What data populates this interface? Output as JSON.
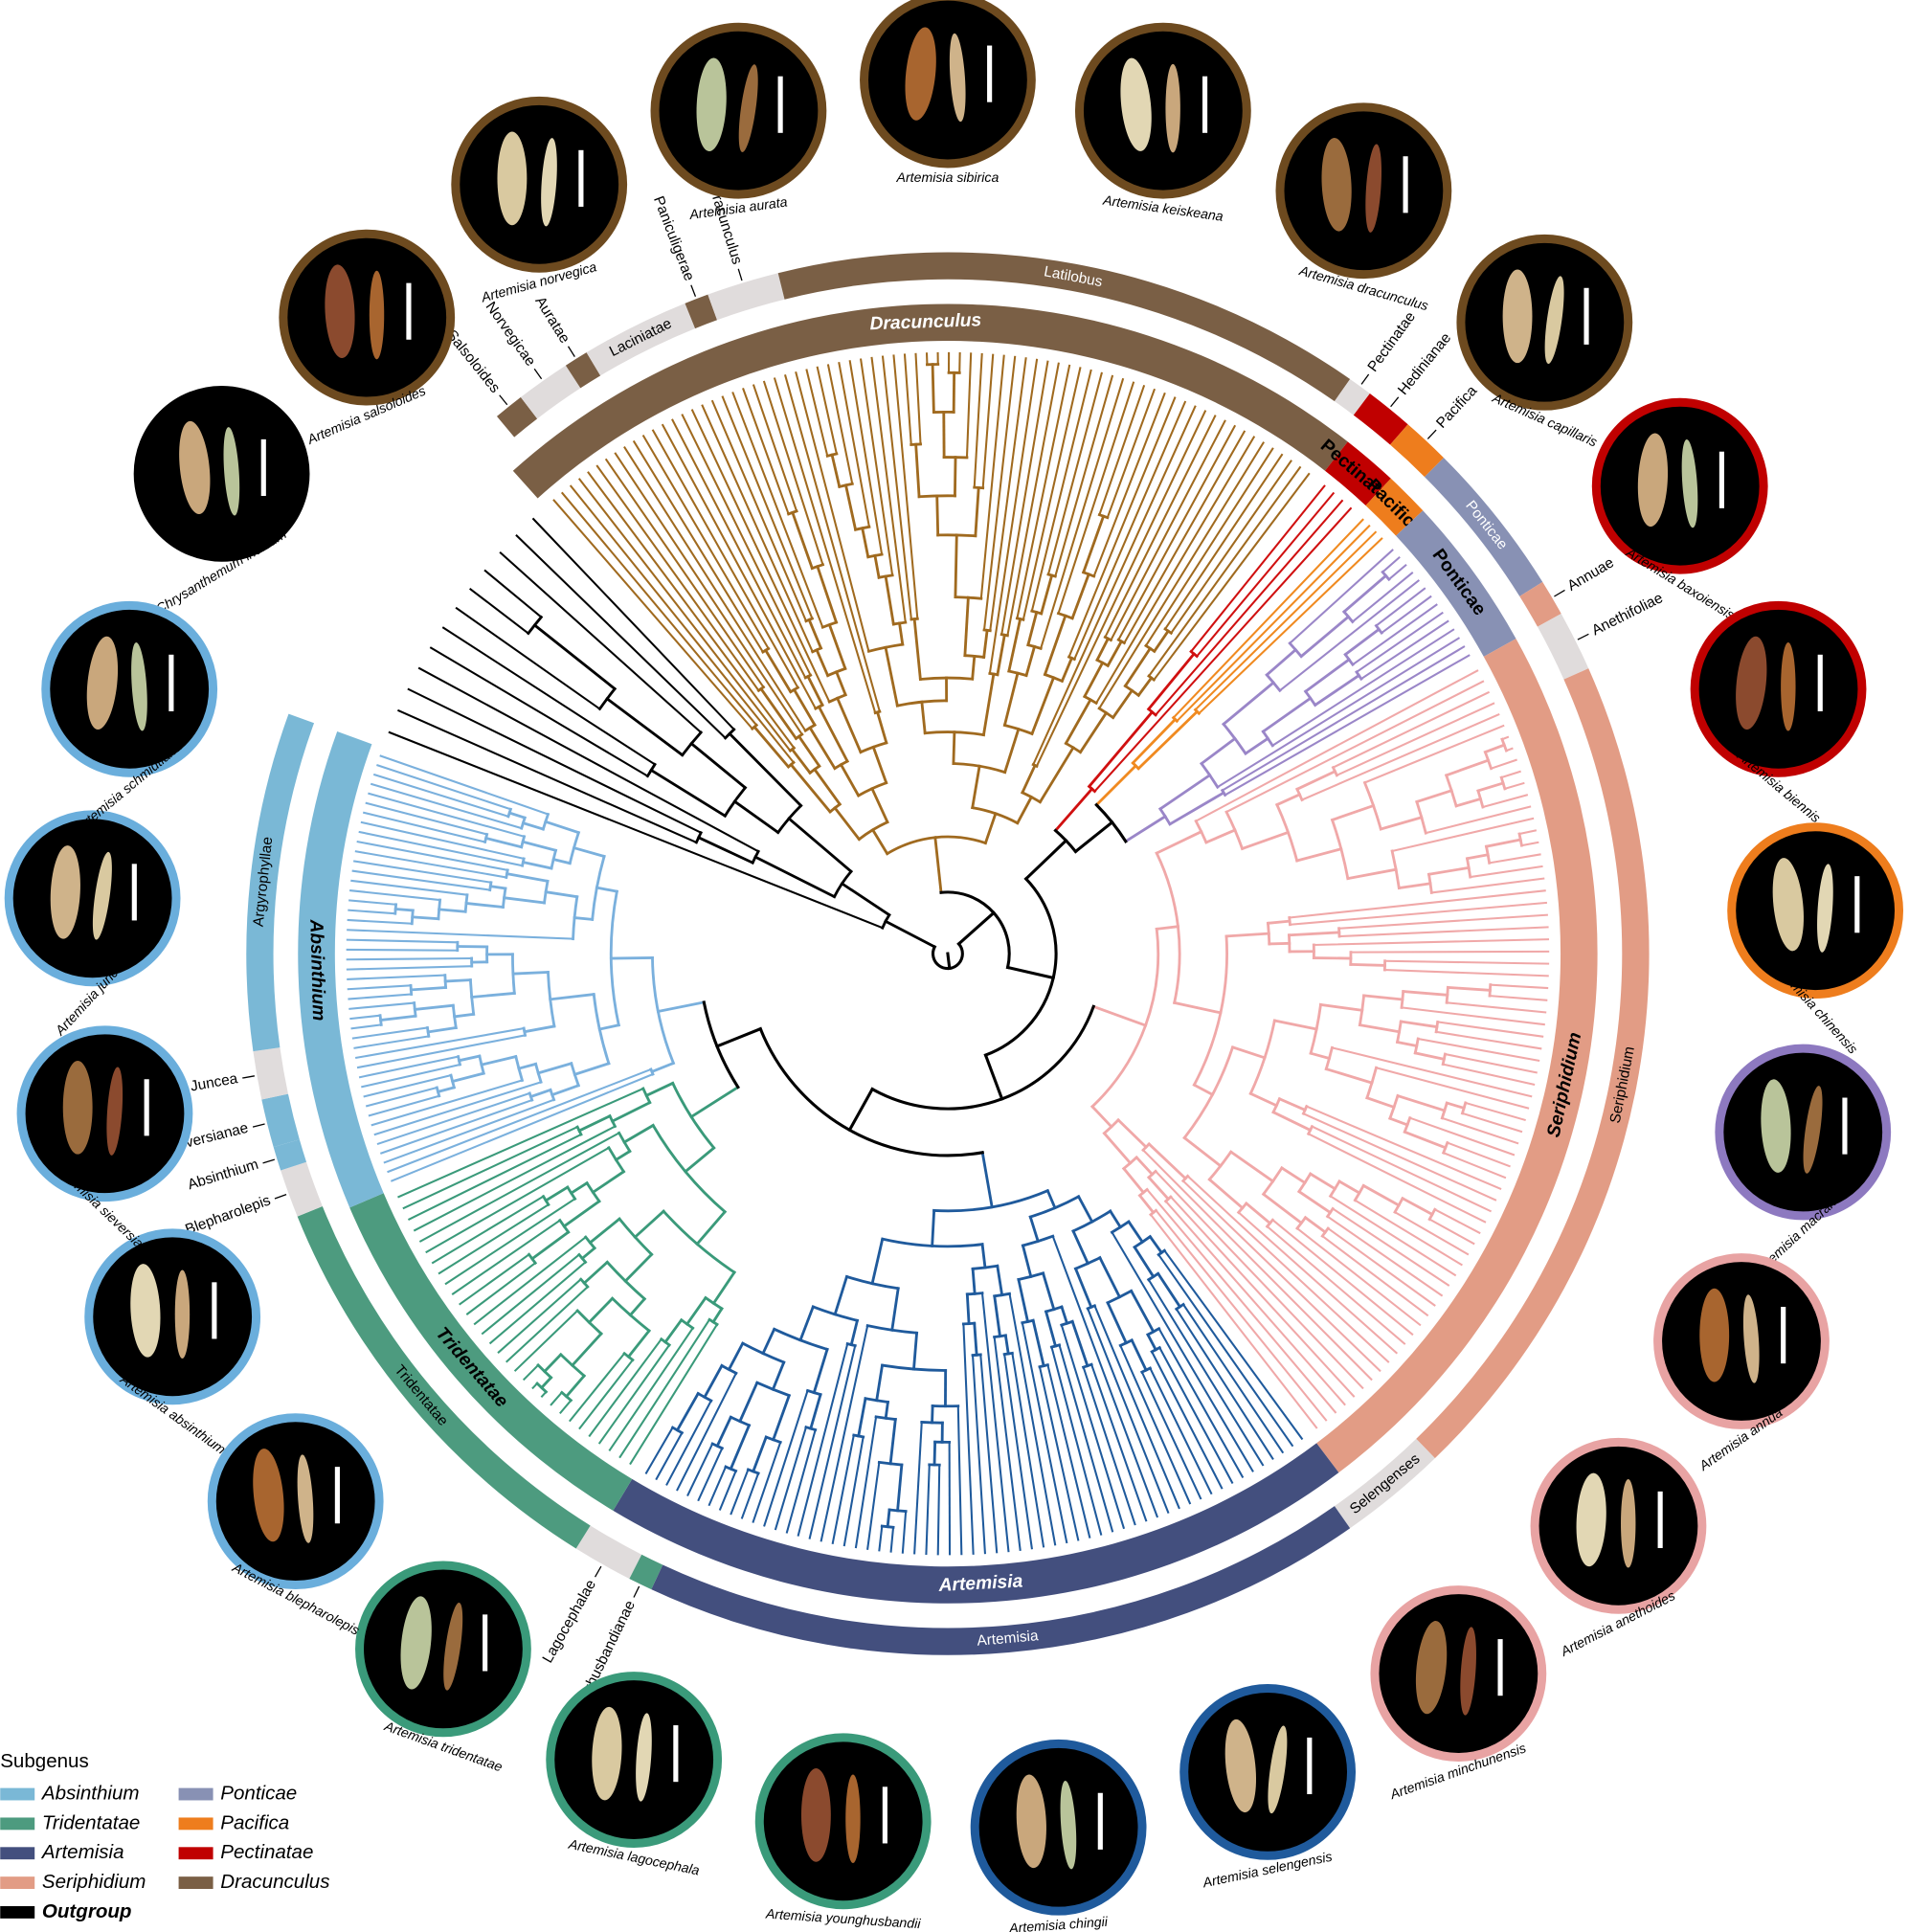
{
  "subgenera": [
    {
      "name": "Dracunculus",
      "color": "#7a5f45"
    },
    {
      "name": "Pectinatae",
      "color": "#c00000"
    },
    {
      "name": "Pacifica",
      "color": "#ee7d1d"
    },
    {
      "name": "Ponticae",
      "color": "#8891b4"
    },
    {
      "name": "Seriphidium",
      "color": "#e29c85"
    },
    {
      "name": "Artemisia",
      "color": "#434f7e"
    },
    {
      "name": "Tridentatae",
      "color": "#4d9b7f"
    },
    {
      "name": "Absinthium",
      "color": "#7ab8d6"
    }
  ],
  "sections": [
    {
      "name": "Salsoloides",
      "color": "#7a5f45"
    },
    {
      "name": "Norvegicae",
      "color": "#e0dcdc"
    },
    {
      "name": "Auratae",
      "color": "#7a5f45"
    },
    {
      "name": "Laciniatae",
      "color": "#e0dcdc"
    },
    {
      "name": "Paniculigerae",
      "color": "#7a5f45"
    },
    {
      "name": "Dracunculus",
      "color": "#e0dcdc"
    },
    {
      "name": "Latilobus",
      "color": "#7a5f45"
    },
    {
      "name": "Pectinatae",
      "color": "#e0dcdc"
    },
    {
      "name": "Hedinianae",
      "color": "#c00000"
    },
    {
      "name": "Pacifica",
      "color": "#ee7d1d"
    },
    {
      "name": "Ponticae",
      "color": "#8891b4"
    },
    {
      "name": "Annuae",
      "color": "#e29c85"
    },
    {
      "name": "Anethifoliae",
      "color": "#e0dcdc"
    },
    {
      "name": "Seriphidium",
      "color": "#e29c85"
    },
    {
      "name": "Selengenses",
      "color": "#e0dcdc"
    },
    {
      "name": "Artemisia",
      "color": "#434f7e"
    },
    {
      "name": "Younghusbandianae",
      "color": "#4d9b7f"
    },
    {
      "name": "Lagocephalae",
      "color": "#e0dcdc"
    },
    {
      "name": "Tridentatae",
      "color": "#4d9b7f"
    },
    {
      "name": "Blepharolepis",
      "color": "#e0dcdc"
    },
    {
      "name": "Absinthium",
      "color": "#7ab8d6"
    },
    {
      "name": "Seversianae",
      "color": "#7ab8d6"
    },
    {
      "name": "Juncea",
      "color": "#e0dcdc"
    },
    {
      "name": "Argyrophyllae",
      "color": "#7ab8d6"
    }
  ],
  "species": [
    {
      "name": "Chrysanthemum indicum",
      "ring": "#000000"
    },
    {
      "name": "Artemisia salsoloides",
      "ring": "#6d4a1f"
    },
    {
      "name": "Artemisia norvegica",
      "ring": "#6d4a1f"
    },
    {
      "name": "Artemisia aurata",
      "ring": "#6d4a1f"
    },
    {
      "name": "Artemisia sibirica",
      "ring": "#6d4a1f"
    },
    {
      "name": "Artemisia keiskeana",
      "ring": "#6d4a1f"
    },
    {
      "name": "Artemisia dracunculus",
      "ring": "#6d4a1f"
    },
    {
      "name": "Artemisia capillaris",
      "ring": "#6d4a1f"
    },
    {
      "name": "Artemisia baxoiensis",
      "ring": "#c00000"
    },
    {
      "name": "Artemisia biennis",
      "ring": "#c00000"
    },
    {
      "name": "Artemisia chinensis",
      "ring": "#ee7d1d"
    },
    {
      "name": "Artemisia macrantha",
      "ring": "#8d79c0"
    },
    {
      "name": "Artemisia annua",
      "ring": "#e8a3a3"
    },
    {
      "name": "Artemisia anethoides",
      "ring": "#e8a3a3"
    },
    {
      "name": "Artemisia minchunensis",
      "ring": "#e8a3a3"
    },
    {
      "name": "Artemisia selengensis",
      "ring": "#1f5a9c"
    },
    {
      "name": "Artemisia chingii",
      "ring": "#1f5a9c"
    },
    {
      "name": "Artemisia younghusbandii",
      "ring": "#3a9a7a"
    },
    {
      "name": "Artemisia lagocephala",
      "ring": "#3a9a7a"
    },
    {
      "name": "Artemisia tridentatae",
      "ring": "#3a9a7a"
    },
    {
      "name": "Artemisia blepharolepis",
      "ring": "#6aaedc"
    },
    {
      "name": "Artemisia absinthium",
      "ring": "#6aaedc"
    },
    {
      "name": "Artemisia sieversiana",
      "ring": "#6aaedc"
    },
    {
      "name": "Artemisia juncea",
      "ring": "#6aaedc"
    },
    {
      "name": "Artemisia schmidtiana",
      "ring": "#6aaedc"
    }
  ],
  "legend": {
    "title": "Subgenus",
    "items": [
      {
        "name": "Absinthium",
        "color": "#7ab8d6"
      },
      {
        "name": "Tridentatae",
        "color": "#4d9b7f"
      },
      {
        "name": "Artemisia",
        "color": "#434f7e"
      },
      {
        "name": "Seriphidium",
        "color": "#e29c85"
      },
      {
        "name": "Outgroup",
        "color": "#000000"
      },
      {
        "name": "Ponticae",
        "color": "#8891b4"
      },
      {
        "name": "Pacifica",
        "color": "#ee7d1d"
      },
      {
        "name": "Pectinatae",
        "color": "#c00000"
      },
      {
        "name": "Dracunculus",
        "color": "#7a5f45"
      }
    ]
  }
}
